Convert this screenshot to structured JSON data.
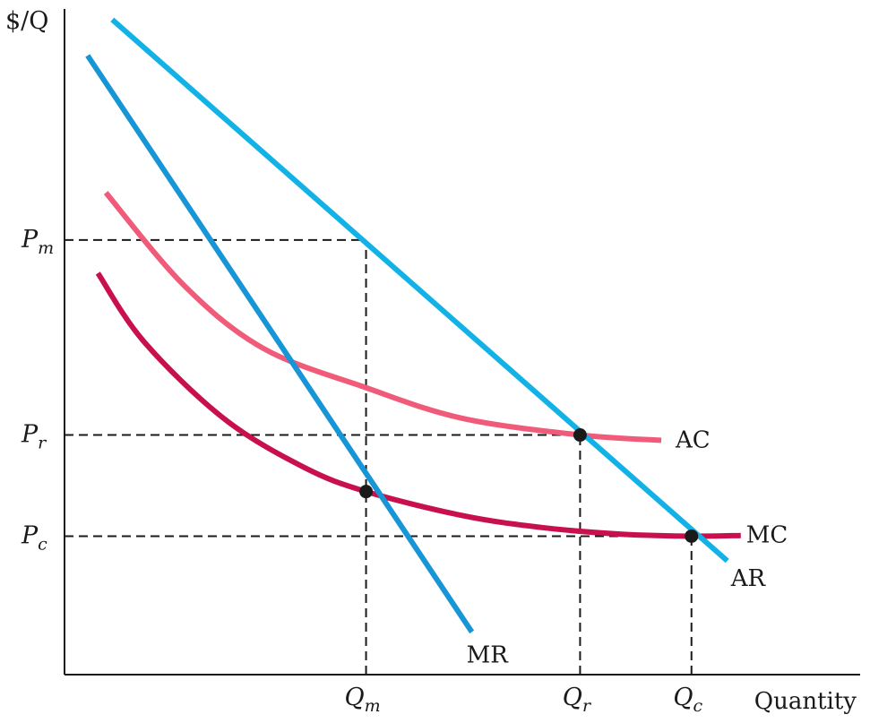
{
  "chart_data": {
    "type": "line",
    "title": "",
    "xlabel": "Quantity",
    "ylabel": "$/Q",
    "xlim": [
      0,
      10
    ],
    "ylim": [
      0,
      10
    ],
    "grid": false,
    "legend": "none",
    "x_ticks": [
      {
        "label": "Q",
        "sub": "m",
        "value": 3.79
      },
      {
        "label": "Q",
        "sub": "r",
        "value": 6.48
      },
      {
        "label": "Q",
        "sub": "c",
        "value": 7.88
      }
    ],
    "y_ticks": [
      {
        "label": "P",
        "sub": "m",
        "value": 6.53
      },
      {
        "label": "P",
        "sub": "r",
        "value": 3.6
      },
      {
        "label": "P",
        "sub": "c",
        "value": 2.08
      }
    ],
    "series": [
      {
        "name": "AR",
        "color": "#12b2e6",
        "x": [
          0.6,
          8.33
        ],
        "y": [
          9.84,
          1.71
        ]
      },
      {
        "name": "MR",
        "color": "#1696d6",
        "x": [
          0.29,
          5.12
        ],
        "y": [
          9.3,
          0.64
        ]
      },
      {
        "name": "AC",
        "color": "#ef5b78",
        "x": [
          0.52,
          1.5,
          2.5,
          3.79,
          5.0,
          6.48,
          7.5
        ],
        "y": [
          7.24,
          5.85,
          4.9,
          4.31,
          3.85,
          3.6,
          3.52
        ]
      },
      {
        "name": "MC",
        "color": "#c8104c",
        "x": [
          0.42,
          1.0,
          2.0,
          3.0,
          3.79,
          5.0,
          6.0,
          7.0,
          7.88,
          8.5
        ],
        "y": [
          6.03,
          5.0,
          3.85,
          3.12,
          2.75,
          2.39,
          2.21,
          2.11,
          2.08,
          2.09
        ]
      }
    ],
    "points": [
      {
        "name": "MR=MC",
        "x": 3.79,
        "y": 2.75
      },
      {
        "name": "AR=AC",
        "x": 6.48,
        "y": 3.6
      },
      {
        "name": "AR=MC",
        "x": 7.88,
        "y": 2.08
      }
    ],
    "guides": [
      {
        "kind": "h",
        "y": 6.53,
        "x_to": 3.79
      },
      {
        "kind": "h",
        "y": 3.6,
        "x_to": 6.48
      },
      {
        "kind": "h",
        "y": 2.08,
        "x_to": 7.88
      },
      {
        "kind": "v",
        "x": 3.79,
        "y_to": 6.53
      },
      {
        "kind": "v",
        "x": 6.48,
        "y_to": 3.6
      },
      {
        "kind": "v",
        "x": 7.88,
        "y_to": 2.08
      }
    ]
  }
}
